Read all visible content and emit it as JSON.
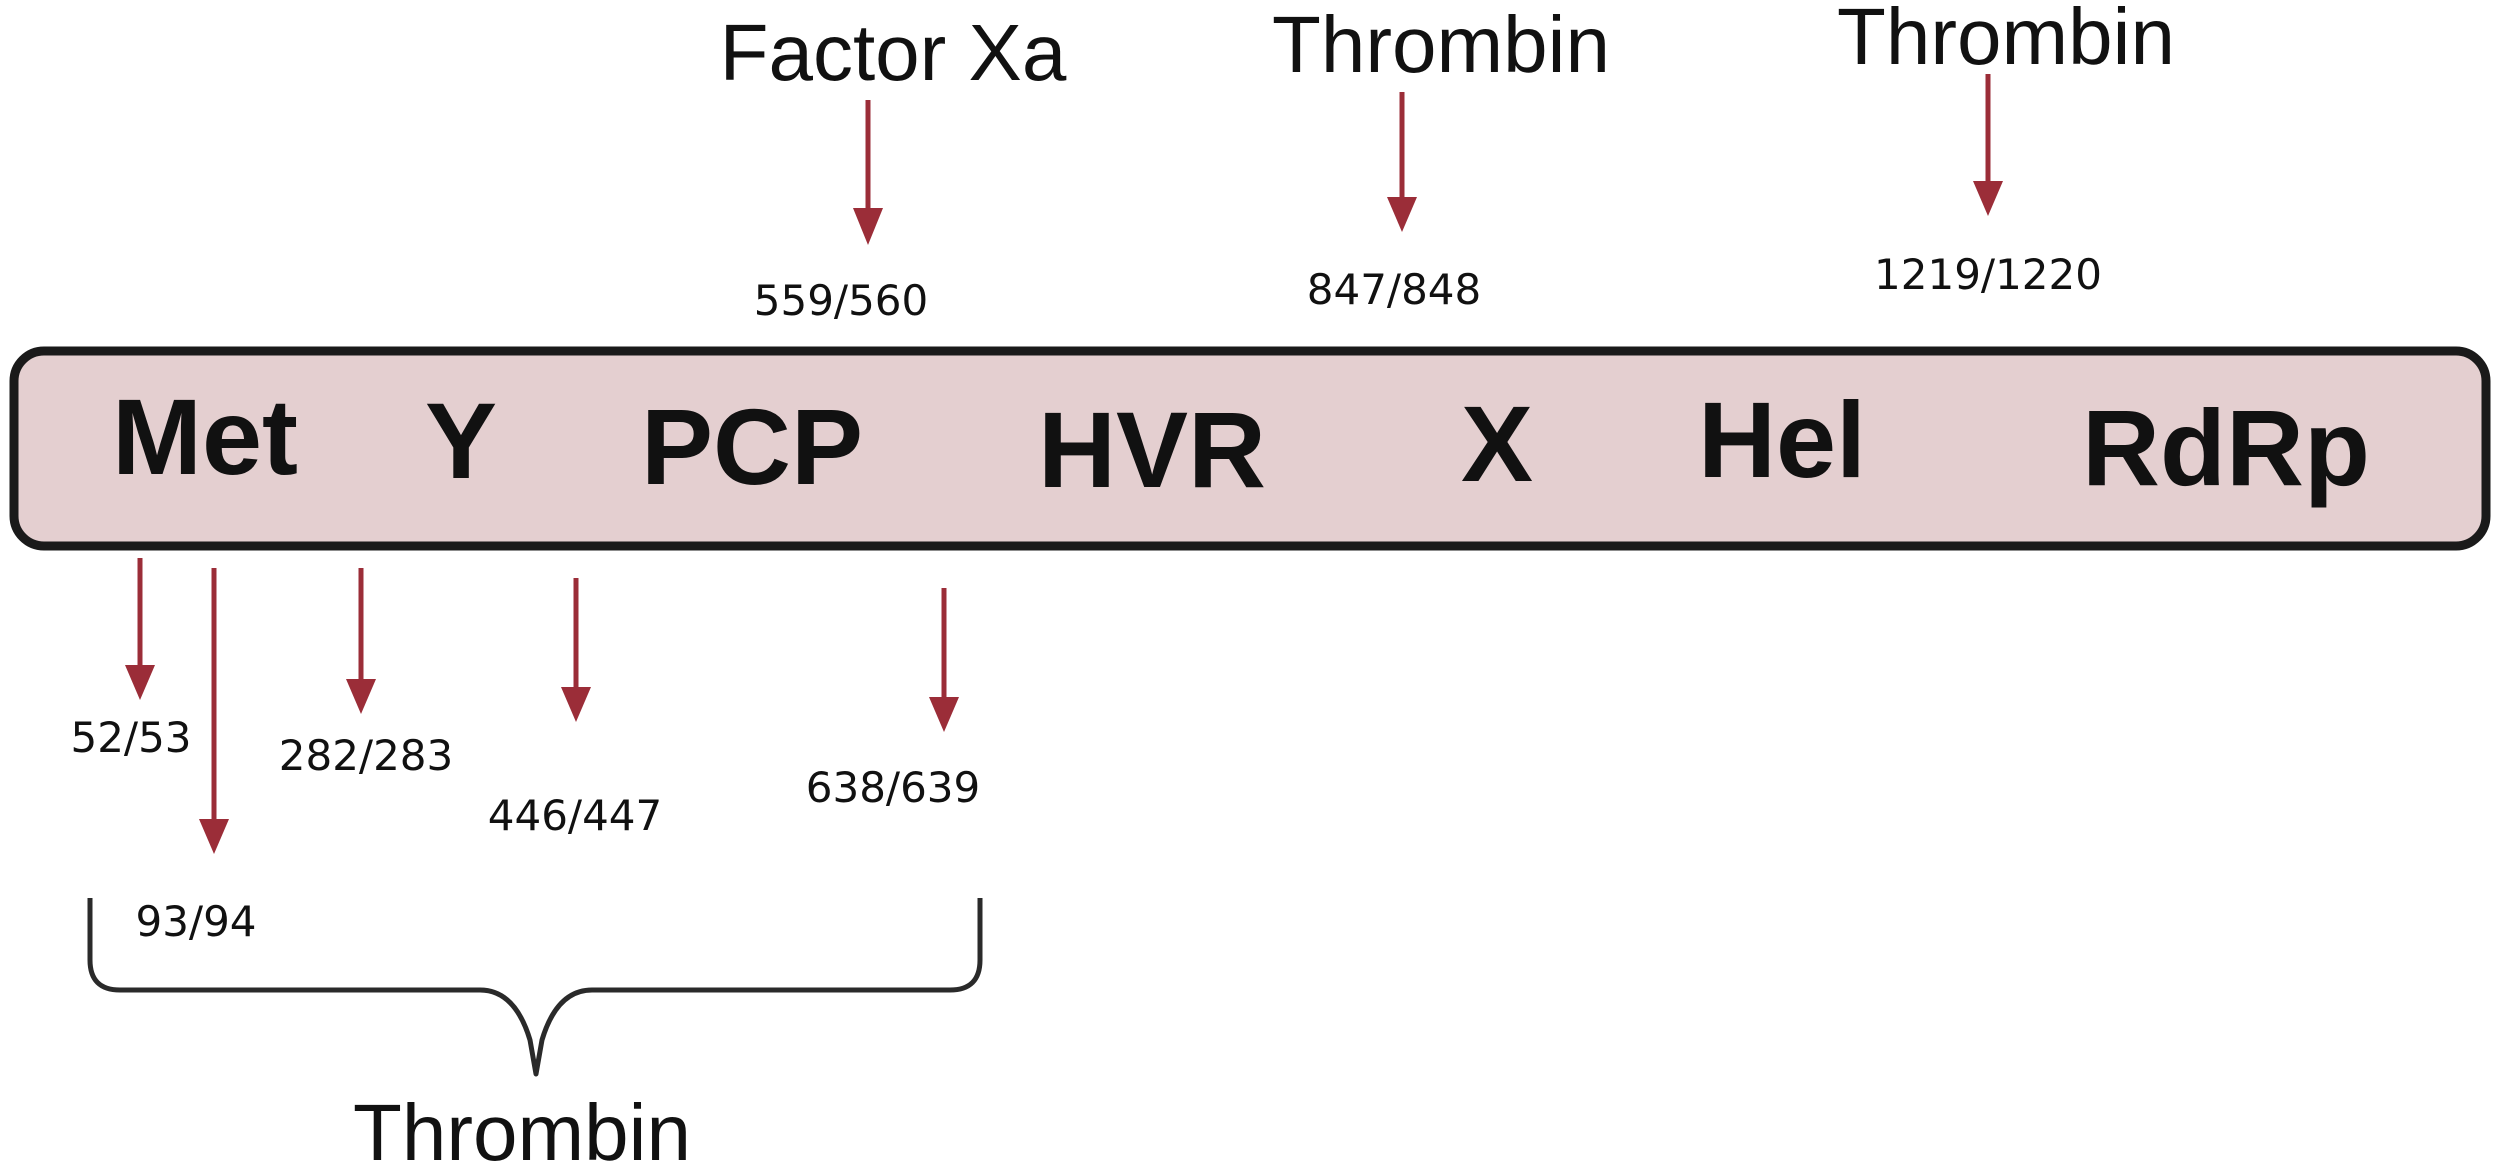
{
  "colors": {
    "polyprotein_fill": "#e4cfd0",
    "polyprotein_stroke": "#1a1a1a",
    "arrow": "#9b2d38",
    "brace": "#2a2a2a",
    "text": "#111111"
  },
  "domains": {
    "met": "Met",
    "y": "Y",
    "pcp": "PCP",
    "hvr": "HVR",
    "x": "X",
    "hel": "Hel",
    "rdrp": "RdRp"
  },
  "enzymes_top": {
    "factor_xa": "Factor Xa",
    "thrombin_1": "Thrombin",
    "thrombin_2": "Thrombin"
  },
  "sites_top": {
    "s559": "559/560",
    "s847": "847/848",
    "s1219": "1219/1220"
  },
  "sites_bottom": {
    "s52": "52/53",
    "s93": "93/94",
    "s282": "282/283",
    "s446": "446/447",
    "s638": "638/639"
  },
  "enzyme_bottom": "Thrombin"
}
